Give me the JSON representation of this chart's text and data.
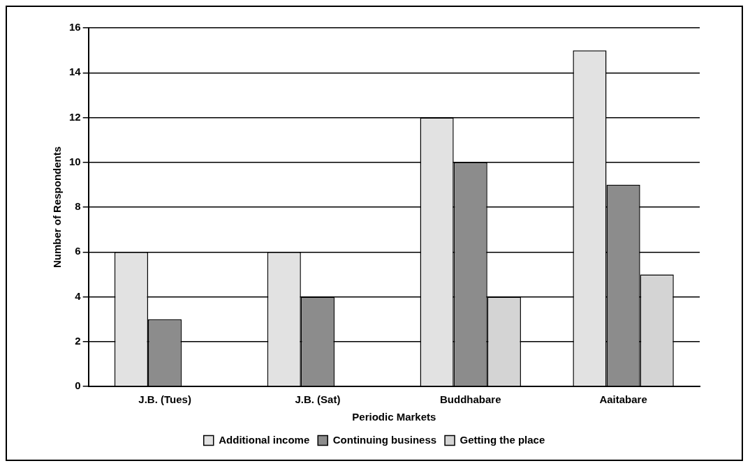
{
  "chart_data": {
    "type": "bar",
    "xlabel": "Periodic Markets",
    "ylabel": "Number of Respondents",
    "categories": [
      "J.B. (Tues)",
      "J.B. (Sat)",
      "Buddhabare",
      "Aaitabare"
    ],
    "series": [
      {
        "name": "Additional income",
        "color": "#e2e2e2",
        "values": [
          6,
          6,
          12,
          15
        ]
      },
      {
        "name": "Continuing business",
        "color": "#8c8c8c",
        "values": [
          3,
          4,
          10,
          9
        ]
      },
      {
        "name": "Getting the place",
        "color": "#d4d4d4",
        "values": [
          null,
          null,
          4,
          5
        ]
      }
    ],
    "ylim": [
      0,
      16
    ],
    "yticks": [
      0,
      2,
      4,
      6,
      8,
      10,
      12,
      14,
      16
    ],
    "grid": "y",
    "legend": "bottom"
  }
}
